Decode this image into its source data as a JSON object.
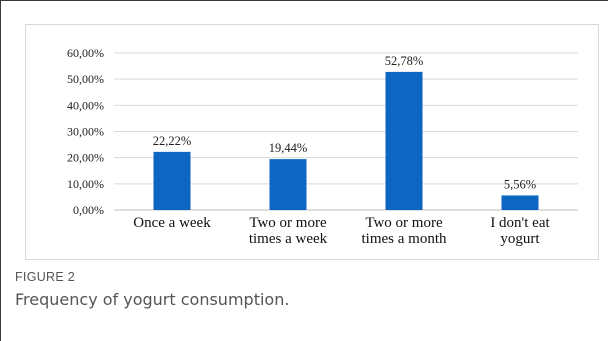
{
  "figure": {
    "label": "FIGURE 2",
    "caption": "Frequency of yogurt consumption."
  },
  "colors": {
    "bar": "#0d66c2",
    "grid": "#d9d9d9",
    "axis": "#bfbfbf",
    "caption": "#555555"
  },
  "chart_data": {
    "type": "bar",
    "categories": [
      [
        "Once a week"
      ],
      [
        "Two or more",
        "times a week"
      ],
      [
        "Two or more",
        "times a month"
      ],
      [
        "I don't eat",
        "yogurt"
      ]
    ],
    "values": [
      22.22,
      19.44,
      52.78,
      5.56
    ],
    "data_labels": [
      "22,22%",
      "19,44%",
      "52,78%",
      "5,56%"
    ],
    "y_ticks": [
      0,
      10,
      20,
      30,
      40,
      50,
      60
    ],
    "y_tick_labels": [
      "0,00%",
      "10,00%",
      "20,00%",
      "30,00%",
      "40,00%",
      "50,00%",
      "60,00%"
    ],
    "ylim": [
      0,
      60
    ],
    "grid": true,
    "title": "",
    "xlabel": "",
    "ylabel": ""
  }
}
